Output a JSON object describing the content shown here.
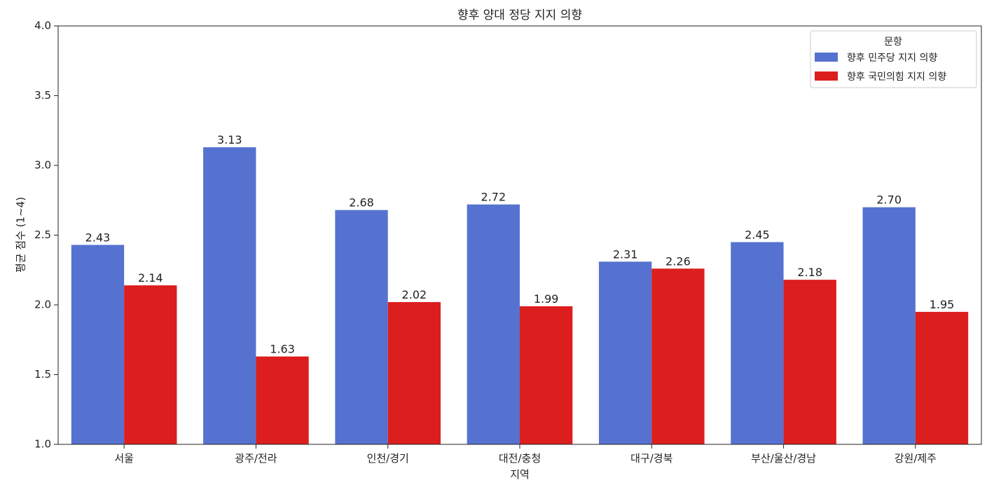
{
  "chart_data": {
    "type": "bar",
    "title": "향후 양대 정당 지지 의향",
    "xlabel": "지역",
    "ylabel": "평균 점수 (1~4)",
    "categories": [
      "서울",
      "광주/전라",
      "인천/경기",
      "대전/충청",
      "대구/경북",
      "부산/울산/경남",
      "강원/제주"
    ],
    "series": [
      {
        "name": "향후 민주당 지지 의향",
        "color": "#5572D0",
        "values": [
          2.43,
          3.13,
          2.68,
          2.72,
          2.31,
          2.45,
          2.7
        ]
      },
      {
        "name": "향후 국민의힘 지지 의향",
        "color": "#DC1E1E",
        "values": [
          2.14,
          1.63,
          2.02,
          1.99,
          2.26,
          2.18,
          1.95
        ]
      }
    ],
    "ylim": [
      1,
      4
    ],
    "ytick_labels": [
      "1.0",
      "1.5",
      "2.0",
      "2.5",
      "3.0",
      "3.5",
      "4.0"
    ],
    "grid": false,
    "legend": {
      "title": "문항",
      "placement": "upper right"
    }
  }
}
